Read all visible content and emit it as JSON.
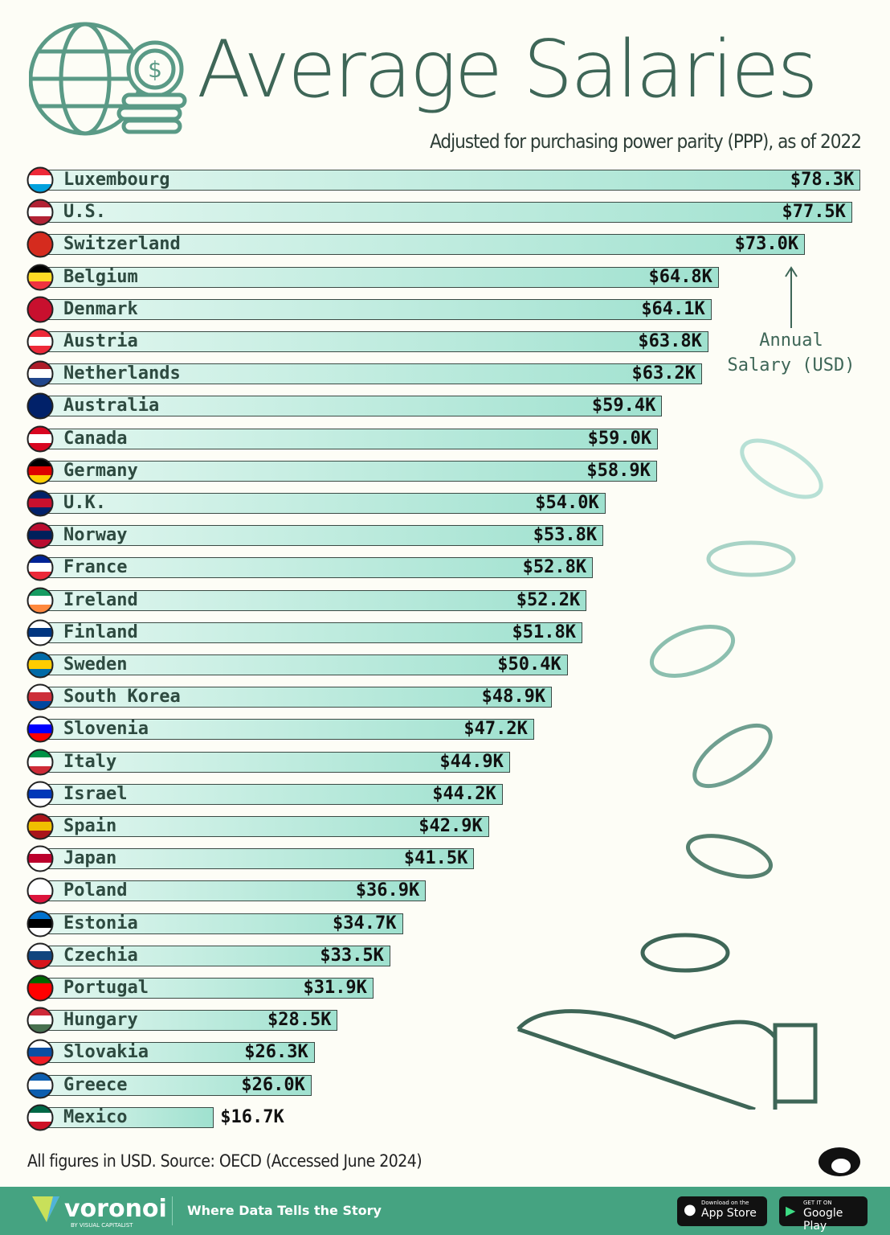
{
  "chart_data": {
    "type": "bar",
    "orientation": "horizontal",
    "title": "Average Salaries",
    "subtitle": "Adjusted for purchasing power parity (PPP), as of 2022",
    "annotation": "Annual Salary (USD)",
    "categories": [
      "Luxembourg",
      "U.S.",
      "Switzerland",
      "Belgium",
      "Denmark",
      "Austria",
      "Netherlands",
      "Australia",
      "Canada",
      "Germany",
      "U.K.",
      "Norway",
      "France",
      "Ireland",
      "Finland",
      "Sweden",
      "South Korea",
      "Slovenia",
      "Italy",
      "Israel",
      "Spain",
      "Japan",
      "Poland",
      "Estonia",
      "Czechia",
      "Portugal",
      "Hungary",
      "Slovakia",
      "Greece",
      "Mexico"
    ],
    "values": [
      78.3,
      77.5,
      73.0,
      64.8,
      64.1,
      63.8,
      63.2,
      59.4,
      59.0,
      58.9,
      54.0,
      53.8,
      52.8,
      52.2,
      51.8,
      50.4,
      48.9,
      47.2,
      44.9,
      44.2,
      42.9,
      41.5,
      36.9,
      34.7,
      33.5,
      31.9,
      28.5,
      26.3,
      26.0,
      16.7
    ],
    "labels": [
      "$78.3K",
      "$77.5K",
      "$73.0K",
      "$64.8K",
      "$64.1K",
      "$63.8K",
      "$63.2K",
      "$59.4K",
      "$59.0K",
      "$58.9K",
      "$54.0K",
      "$53.8K",
      "$52.8K",
      "$52.2K",
      "$51.8K",
      "$50.4K",
      "$48.9K",
      "$47.2K",
      "$44.9K",
      "$44.2K",
      "$42.9K",
      "$41.5K",
      "$36.9K",
      "$34.7K",
      "$33.5K",
      "$31.9K",
      "$28.5K",
      "$26.3K",
      "$26.0K",
      "$16.7K"
    ],
    "unit": "thousand USD",
    "bar_gradient": [
      "#e3f7f0",
      "#9fe1cf"
    ]
  },
  "flags": [
    [
      "#ed2939",
      "#fff",
      "#00a1de"
    ],
    [
      "#b22234",
      "#fff",
      "#b22234"
    ],
    [
      "#d52b1e",
      "#d52b1e",
      "#d52b1e"
    ],
    [
      "#000",
      "#fdda24",
      "#ef3340"
    ],
    [
      "#c8102e",
      "#c8102e",
      "#c8102e"
    ],
    [
      "#ed2939",
      "#fff",
      "#ed2939"
    ],
    [
      "#ae1c28",
      "#fff",
      "#21468b"
    ],
    [
      "#012169",
      "#012169",
      "#012169"
    ],
    [
      "#d80621",
      "#fff",
      "#d80621"
    ],
    [
      "#000",
      "#dd0000",
      "#ffce00"
    ],
    [
      "#012169",
      "#c8102e",
      "#012169"
    ],
    [
      "#ba0c2f",
      "#00205b",
      "#ba0c2f"
    ],
    [
      "#002395",
      "#fff",
      "#ed2939"
    ],
    [
      "#169b62",
      "#fff",
      "#ff883e"
    ],
    [
      "#fff",
      "#003580",
      "#fff"
    ],
    [
      "#006aa7",
      "#fecc00",
      "#006aa7"
    ],
    [
      "#fff",
      "#cd2e3a",
      "#0047a0"
    ],
    [
      "#fff",
      "#0000ff",
      "#ff0000"
    ],
    [
      "#009246",
      "#fff",
      "#ce2b37"
    ],
    [
      "#fff",
      "#0038b8",
      "#fff"
    ],
    [
      "#aa151b",
      "#f1bf00",
      "#aa151b"
    ],
    [
      "#fff",
      "#bc002d",
      "#fff"
    ],
    [
      "#fff",
      "#fff",
      "#dc143c"
    ],
    [
      "#0072ce",
      "#000",
      "#fff"
    ],
    [
      "#fff",
      "#11457e",
      "#d7141a"
    ],
    [
      "#006600",
      "#ff0000",
      "#ff0000"
    ],
    [
      "#ce2939",
      "#fff",
      "#477050"
    ],
    [
      "#fff",
      "#0b4ea2",
      "#ee1c25"
    ],
    [
      "#0d5eaf",
      "#fff",
      "#0d5eaf"
    ],
    [
      "#006847",
      "#fff",
      "#ce1126"
    ]
  ],
  "source": "All figures in USD. Source: OECD (Accessed June 2024)",
  "footer": {
    "brand": "voronoi",
    "brand_sub": "BY VISUAL CAPITALIST",
    "tagline": "Where Data Tells the Story",
    "app_small": "Download on the",
    "app_big": "App Store",
    "play_small": "GET IT ON",
    "play_big": "Google Play"
  },
  "colors": {
    "title": "#3e6657",
    "footer": "#45a381",
    "accent": "#9fe1cf"
  }
}
